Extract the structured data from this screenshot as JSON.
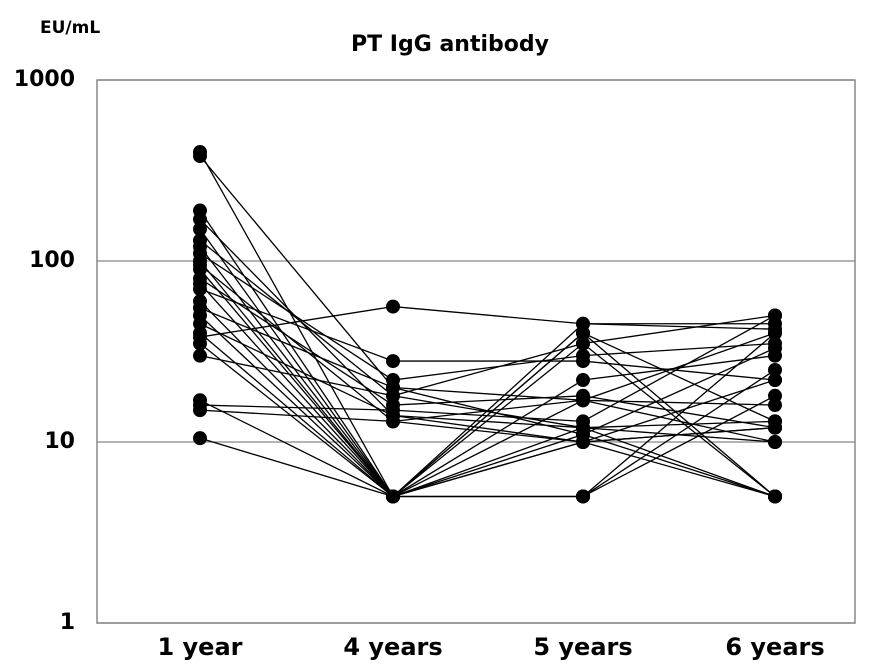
{
  "chart_data": {
    "type": "line",
    "title": "PT IgG antibody",
    "y_label": "EU/mL",
    "categories": [
      "1 year",
      "4 years",
      "5 years",
      "6 years"
    ],
    "ylim": [
      1,
      1000
    ],
    "yticks": [
      1,
      10,
      100,
      1000
    ],
    "log_y": true,
    "grid": true,
    "color": "#000000",
    "series": [
      {
        "values": [
          400,
          5,
          10,
          12
        ]
      },
      {
        "values": [
          380,
          20,
          11,
          5
        ]
      },
      {
        "values": [
          190,
          5,
          40,
          13
        ]
      },
      {
        "values": [
          170,
          14,
          12,
          5
        ]
      },
      {
        "values": [
          150,
          5,
          5,
          40
        ]
      },
      {
        "values": [
          130,
          18,
          35,
          50
        ]
      },
      {
        "values": [
          120,
          5,
          17,
          16
        ]
      },
      {
        "values": [
          110,
          22,
          30,
          35
        ]
      },
      {
        "values": [
          100,
          5,
          45,
          45
        ]
      },
      {
        "values": [
          95,
          13,
          10,
          5
        ]
      },
      {
        "values": [
          90,
          5,
          22,
          30
        ]
      },
      {
        "values": [
          80,
          16,
          18,
          12
        ]
      },
      {
        "values": [
          75,
          5,
          5,
          18
        ]
      },
      {
        "values": [
          70,
          28,
          28,
          22
        ]
      },
      {
        "values": [
          60,
          5,
          12,
          10
        ]
      },
      {
        "values": [
          55,
          20,
          17,
          40
        ]
      },
      {
        "values": [
          50,
          5,
          35,
          5
        ]
      },
      {
        "values": [
          45,
          14,
          10,
          12
        ]
      },
      {
        "values": [
          40,
          5,
          11,
          33
        ]
      },
      {
        "values": [
          38,
          56,
          45,
          42
        ]
      },
      {
        "values": [
          35,
          5,
          5,
          25
        ]
      },
      {
        "values": [
          30,
          18,
          12,
          13
        ]
      },
      {
        "values": [
          17,
          5,
          40,
          5
        ]
      },
      {
        "values": [
          16,
          15,
          13,
          50
        ]
      },
      {
        "values": [
          15,
          13,
          17,
          10
        ]
      },
      {
        "values": [
          10.5,
          5,
          10,
          22
        ]
      }
    ]
  }
}
